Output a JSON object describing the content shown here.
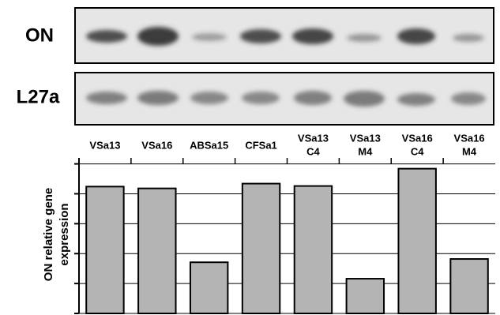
{
  "blot": {
    "rows": [
      "ON",
      "L27a"
    ]
  },
  "chart_data": {
    "type": "bar",
    "categories": [
      [
        "VSa13"
      ],
      [
        "VSa16"
      ],
      [
        "ABSa15"
      ],
      [
        "CFSa1"
      ],
      [
        "VSa13",
        "C4"
      ],
      [
        "VSa13",
        "M4"
      ],
      [
        "VSa16",
        "C4"
      ],
      [
        "VSa16",
        "M4"
      ]
    ],
    "values": [
      4.24,
      4.18,
      1.71,
      4.34,
      4.26,
      1.16,
      4.84,
      1.82
    ],
    "color": "#b4b4b4",
    "ylabel": [
      "ON relative gene",
      "expression"
    ],
    "ylim": [
      0,
      5.2
    ],
    "yticks": [
      0,
      1,
      2,
      3,
      4,
      5
    ],
    "grid": true
  }
}
